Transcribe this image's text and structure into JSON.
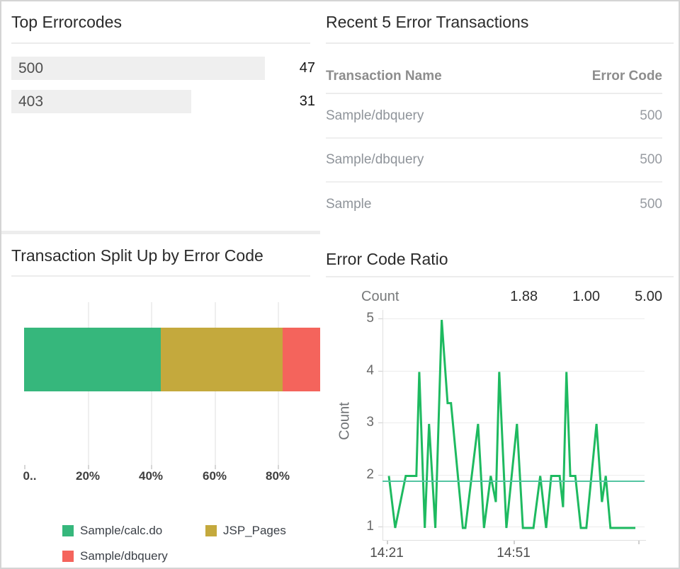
{
  "panels": {
    "top_errorcodes": {
      "title": "Top Errorcodes",
      "chart_data": {
        "type": "bar",
        "orientation": "horizontal",
        "categories": [
          "500",
          "403"
        ],
        "values": [
          47,
          31
        ],
        "bar_fractions": [
          0.805,
          0.571
        ],
        "bar_color": "#efefef"
      }
    },
    "recent_transactions": {
      "title": "Recent 5 Error Transactions",
      "columns": [
        "Transaction Name",
        "Error Code"
      ],
      "rows": [
        {
          "name": "Sample/dbquery",
          "code": "500"
        },
        {
          "name": "Sample/dbquery",
          "code": "500"
        },
        {
          "name": "Sample",
          "code": "500"
        }
      ]
    },
    "split_by_error_code": {
      "title": "Transaction Split Up by Error Code",
      "chart_data": {
        "type": "stacked-bar",
        "orientation": "horizontal",
        "x_tick_labels": [
          "0..",
          "20%",
          "40%",
          "60%",
          "80%"
        ],
        "x_tick_percents": [
          0,
          20,
          40,
          60,
          80
        ],
        "series": [
          {
            "name": "Sample/calc.do",
            "color": "#36b77c",
            "percent": 43.2
          },
          {
            "name": "JSP_Pages",
            "color": "#c4a93d",
            "percent": 38.3
          },
          {
            "name": "Sample/dbquery",
            "color": "#f4645c",
            "percent": 18.5
          }
        ]
      },
      "legend": [
        {
          "label": "Sample/calc.do",
          "color": "#36b77c"
        },
        {
          "label": "JSP_Pages",
          "color": "#c4a93d"
        },
        {
          "label": "Sample/dbquery",
          "color": "#f4645c"
        }
      ]
    },
    "error_code_ratio": {
      "title": "Error Code Ratio",
      "stats": {
        "label": "Count",
        "avg": "1.88",
        "min": "1.00",
        "max": "5.00"
      },
      "chart_data": {
        "type": "line",
        "ylabel": "Count",
        "y_ticks": [
          5,
          4,
          3,
          2,
          1
        ],
        "ylim": [
          1,
          5
        ],
        "x_ticks": [
          {
            "minute": 0,
            "label": "14:21"
          },
          {
            "minute": 30,
            "label": "14:51"
          },
          {
            "minute": 59.5,
            "label": ""
          }
        ],
        "average_line": 1.88,
        "line_color": "#1eba60",
        "average_color": "#55c5a2",
        "points": [
          [
            0.5,
            2
          ],
          [
            2,
            1
          ],
          [
            4.5,
            2
          ],
          [
            7,
            2
          ],
          [
            7.7,
            4
          ],
          [
            9,
            1
          ],
          [
            10,
            3
          ],
          [
            11.5,
            1
          ],
          [
            13,
            5
          ],
          [
            13.6,
            4.3
          ],
          [
            14.4,
            3.4
          ],
          [
            15.2,
            3.4
          ],
          [
            18,
            1
          ],
          [
            18.6,
            1
          ],
          [
            21.6,
            3
          ],
          [
            23,
            1
          ],
          [
            24.6,
            2
          ],
          [
            25.8,
            1.5
          ],
          [
            26.6,
            4
          ],
          [
            28.3,
            1
          ],
          [
            30.8,
            3
          ],
          [
            32.2,
            1
          ],
          [
            34.7,
            1
          ],
          [
            36.3,
            2
          ],
          [
            37.7,
            1
          ],
          [
            38.9,
            2
          ],
          [
            40.9,
            2
          ],
          [
            41.7,
            1.4
          ],
          [
            42.5,
            4
          ],
          [
            43.4,
            2
          ],
          [
            44.6,
            2
          ],
          [
            45.9,
            1
          ],
          [
            47.2,
            1
          ],
          [
            49.6,
            3
          ],
          [
            50.9,
            1.5
          ],
          [
            51.8,
            2
          ],
          [
            52.9,
            1
          ],
          [
            58.8,
            1
          ]
        ]
      }
    }
  }
}
